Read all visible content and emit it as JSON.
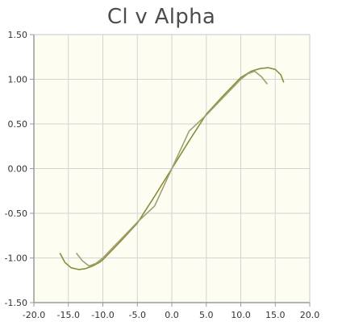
{
  "chart_data": {
    "type": "line",
    "title": "Cl v Alpha",
    "xlabel": "",
    "ylabel": "",
    "xlim": [
      -20,
      20
    ],
    "ylim": [
      -1.5,
      1.5
    ],
    "x_ticks": [
      -20,
      -15,
      -10,
      -5,
      0,
      5,
      10,
      15,
      20
    ],
    "x_tick_labels": [
      "-20.0",
      "-15.0",
      "-10.0",
      "-5.0",
      "0.0",
      "5.0",
      "10.0",
      "15.0",
      "20.0"
    ],
    "y_ticks": [
      1.5,
      1.0,
      0.5,
      0.0,
      -0.5,
      -1.0,
      -1.5
    ],
    "y_tick_labels": [
      "1.50",
      "1.00",
      "0.50",
      "0.00",
      "-0.50",
      "-1.00",
      "-1.50"
    ],
    "grid": true,
    "legend": "none",
    "plot_background": "#fdfdf2",
    "series": [
      {
        "color": "#8c8c3c",
        "x": [
          -16.2,
          -15.5,
          -14.6,
          -13.5,
          -12.5,
          -11.5,
          -10.5,
          -10,
          -7.5,
          -5,
          -2.5,
          0,
          2.5,
          5,
          7.5,
          10,
          11.5,
          12.8,
          14,
          15,
          15.8,
          16.2
        ],
        "y": [
          -0.95,
          -1.05,
          -1.11,
          -1.13,
          -1.12,
          -1.09,
          -1.05,
          -1.02,
          -0.82,
          -0.61,
          -0.31,
          0.0,
          0.31,
          0.61,
          0.82,
          1.02,
          1.09,
          1.12,
          1.13,
          1.11,
          1.05,
          0.97
        ]
      },
      {
        "color": "#a0a070",
        "x": [
          -13.8,
          -13.0,
          -12.0,
          -11.0,
          -10.0,
          -7.5,
          -5.0,
          -2.5,
          0,
          2.5,
          5.0,
          7.5,
          10.0,
          11.0,
          12.0,
          13.0,
          13.8
        ],
        "y": [
          -0.95,
          -1.03,
          -1.09,
          -1.06,
          -1.0,
          -0.8,
          -0.6,
          -0.42,
          0.0,
          0.42,
          0.6,
          0.8,
          1.0,
          1.06,
          1.09,
          1.03,
          0.95
        ]
      }
    ]
  }
}
